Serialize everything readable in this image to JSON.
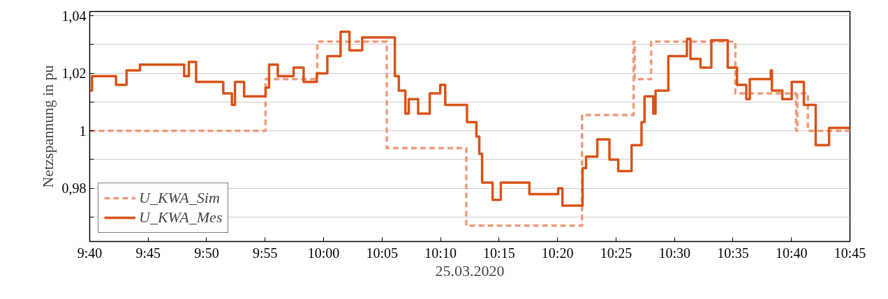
{
  "chart_data": {
    "type": "step",
    "xlabel": "25.03.2020",
    "ylabel": "Netzspannung in pu",
    "xlim": [
      9.6667,
      10.75
    ],
    "ylim": [
      0.9615,
      1.0415
    ],
    "xticks": [
      {
        "value": 9.6667,
        "label": "9:40"
      },
      {
        "value": 9.75,
        "label": "9:45"
      },
      {
        "value": 9.8333,
        "label": "9:50"
      },
      {
        "value": 9.9167,
        "label": "9:55"
      },
      {
        "value": 10,
        "label": "10:00"
      },
      {
        "value": 10.0833,
        "label": "10:05"
      },
      {
        "value": 10.1667,
        "label": "10:10"
      },
      {
        "value": 10.25,
        "label": "10:15"
      },
      {
        "value": 10.3333,
        "label": "10:20"
      },
      {
        "value": 10.4167,
        "label": "10:25"
      },
      {
        "value": 10.5,
        "label": "10:30"
      },
      {
        "value": 10.5833,
        "label": "10:35"
      },
      {
        "value": 10.6667,
        "label": "10:40"
      },
      {
        "value": 10.75,
        "label": "10:45"
      }
    ],
    "yticks": [
      {
        "value": 0.97,
        "label": null
      },
      {
        "value": 0.98,
        "label": "0,98"
      },
      {
        "value": 0.99,
        "label": null
      },
      {
        "value": 1,
        "label": "1"
      },
      {
        "value": 1.01,
        "label": null
      },
      {
        "value": 1.02,
        "label": "1,02"
      },
      {
        "value": 1.03,
        "label": null
      },
      {
        "value": 1.04,
        "label": "1,04"
      }
    ],
    "grid": "y",
    "legend": "bottom left",
    "series": [
      {
        "name": "U_KWA_Sim",
        "color": "#ec9c7c",
        "line_style": "dashed",
        "x": [
          9.6667,
          9.9173,
          9.991,
          10.09,
          10.2033,
          10.3683,
          10.4417,
          10.4433,
          10.4667,
          10.5867,
          10.6733,
          10.675,
          10.69,
          10.75
        ],
        "values": [
          1.0,
          1.018,
          1.031,
          0.994,
          0.967,
          1.0055,
          1.031,
          1.018,
          1.031,
          1.013,
          1.0,
          1.013,
          1.0,
          1.0
        ]
      },
      {
        "name": "U_KWA_Mes",
        "color": "#d95319",
        "line_style": "solid",
        "x": [
          9.6667,
          9.67,
          9.7042,
          9.7192,
          9.7383,
          9.8013,
          9.808,
          9.8183,
          9.857,
          9.8693,
          9.8737,
          9.8867,
          9.9173,
          9.9223,
          9.9347,
          9.9572,
          9.9715,
          9.9903,
          10.0053,
          10.0242,
          10.0368,
          10.055,
          10.1015,
          10.1072,
          10.1165,
          10.1213,
          10.1347,
          10.1512,
          10.1662,
          10.1733,
          10.2043,
          10.2177,
          10.2218,
          10.2258,
          10.2408,
          10.2525,
          10.2932,
          10.3343,
          10.3403,
          10.369,
          10.374,
          10.39,
          10.4073,
          10.4198,
          10.4388,
          10.453,
          10.4573,
          10.4697,
          10.473,
          10.4912,
          10.5177,
          10.5227,
          10.537,
          10.5525,
          10.5758,
          10.589,
          10.6023,
          10.6073,
          10.6372,
          10.6388,
          10.6537,
          10.667,
          10.6843,
          10.7012,
          10.7203,
          10.75
        ],
        "values": [
          1.014,
          1.019,
          1.016,
          1.021,
          1.023,
          1.019,
          1.024,
          1.017,
          1.013,
          1.009,
          1.017,
          1.012,
          1.015,
          1.023,
          1.019,
          1.022,
          1.017,
          1.02,
          1.026,
          1.0345,
          1.028,
          1.0325,
          1.019,
          1.014,
          1.006,
          1.011,
          1.006,
          1.013,
          1.016,
          1.009,
          1.003,
          0.998,
          0.992,
          0.982,
          0.976,
          0.982,
          0.978,
          0.98,
          0.974,
          0.987,
          0.991,
          0.997,
          0.99,
          0.986,
          0.995,
          1.003,
          1.012,
          1.006,
          1.014,
          1.026,
          1.032,
          1.025,
          1.022,
          1.0315,
          1.022,
          1.016,
          1.011,
          1.018,
          1.021,
          1.014,
          1.011,
          1.017,
          1.009,
          0.995,
          1.001,
          1.001
        ]
      }
    ]
  }
}
